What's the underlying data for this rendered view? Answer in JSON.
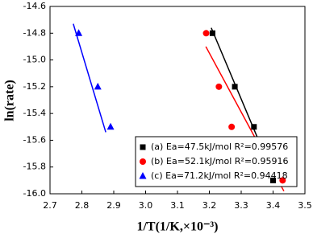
{
  "chart_data": {
    "type": "scatter",
    "x_label": "1/T(1/K,×10⁻³)",
    "y_label": "ln(rate)",
    "xlim": [
      2.7,
      3.5
    ],
    "ylim": [
      -16.0,
      -14.6
    ],
    "xticks": [
      2.7,
      2.8,
      2.9,
      {
        "value": 3,
        "label": "3.0"
      },
      3.1,
      3.2,
      3.3,
      3.4,
      3.5
    ],
    "yticks": [
      {
        "value": -16,
        "label": "-16.0"
      },
      -15.8,
      -15.6,
      -15.4,
      -15.2,
      {
        "value": -15,
        "label": "-15.0"
      },
      -14.8,
      -14.6
    ],
    "series": [
      {
        "name": "(a) Ea=47.5kJ/mol  R²=0.99576",
        "color": "#000000",
        "marker": "square",
        "x": [
          3.21,
          3.28,
          3.34,
          3.4
        ],
        "values": [
          -14.8,
          -15.2,
          -15.5,
          -15.9
        ],
        "fit_x": [
          3.206,
          3.411
        ],
        "fit_y": [
          -14.76,
          -15.92
        ]
      },
      {
        "name": "(b) Ea=52.1kJ/mol  R²=0.95916",
        "color": "#ff0000",
        "marker": "circle",
        "x": [
          3.19,
          3.23,
          3.27,
          3.43
        ],
        "values": [
          -14.8,
          -15.2,
          -15.5,
          -15.9
        ],
        "fit_x": [
          3.189,
          3.434
        ],
        "fit_y": [
          -14.9,
          -15.98
        ]
      },
      {
        "name": "(c) Ea=71.2kJ/mol  R²=0.94418",
        "color": "#0000ff",
        "marker": "triangle",
        "x": [
          2.79,
          2.85,
          2.89
        ],
        "values": [
          -14.8,
          -15.2,
          -15.5
        ],
        "fit_x": [
          2.773,
          2.875
        ],
        "fit_y": [
          -14.73,
          -15.54
        ]
      }
    ]
  }
}
